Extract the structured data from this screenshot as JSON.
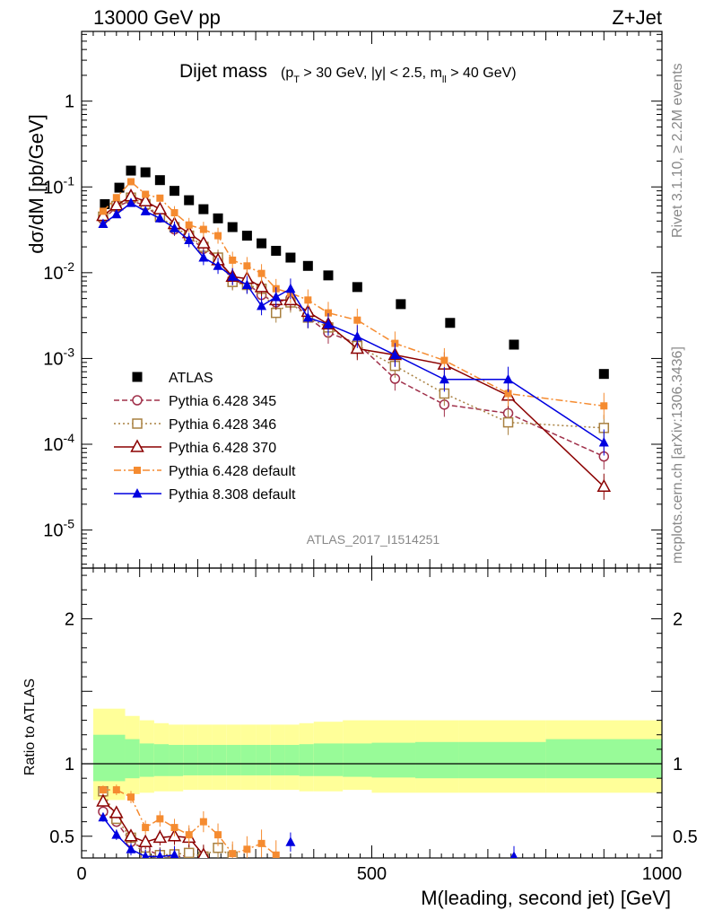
{
  "header": {
    "left": "13000 GeV pp",
    "right": "Z+Jet"
  },
  "side_labels": {
    "rivet": "Rivet 3.1.10, ≥ 2.2M events",
    "mcplots": "mcplots.cern.ch [arXiv:1306.3436]"
  },
  "plot_title": {
    "main": "Dijet mass",
    "cuts": "(p_T > 30 GeV, |y| < 2.5, m_ll > 40 GeV)"
  },
  "analysis_id": "ATLAS_2017_I1514251",
  "colors": {
    "ATLAS": "#000000",
    "p345": "#a0304a",
    "p346": "#a88040",
    "p370": "#8b0000",
    "p6def": "#f58b30",
    "p8def": "#0000e0",
    "band_inner": "#98fb98",
    "band_outer": "#ffff99"
  },
  "chart_data": [
    {
      "type": "scatter",
      "panel": "main",
      "title": "Dijet mass (p_T > 30 GeV, |y| < 2.5, m_ll > 40 GeV)",
      "xlabel": "M(leading, second jet) [GeV]",
      "ylabel": "dσ/dM [pb/GeV]",
      "xlim": [
        0,
        1000
      ],
      "ylim": [
        3.6e-06,
        6.5
      ],
      "yscale": "log",
      "y_ticks": [
        {
          "value": 1,
          "label": "1"
        },
        {
          "value": 0.1,
          "label": "10^-1"
        },
        {
          "value": 0.01,
          "label": "10^-2"
        },
        {
          "value": 0.001,
          "label": "10^-3"
        },
        {
          "value": 0.0001,
          "label": "10^-4"
        },
        {
          "value": 1e-05,
          "label": "10^-5"
        }
      ],
      "legend_position": "center-left",
      "series": [
        {
          "name": "ATLAS",
          "key": "ATLAS",
          "style": "data",
          "marker": "filled-square",
          "x": [
            40,
            65,
            85,
            110,
            135,
            160,
            185,
            210,
            235,
            260,
            285,
            310,
            335,
            360,
            390,
            425,
            475,
            550,
            635,
            745,
            900
          ],
          "y": [
            0.063,
            0.098,
            0.155,
            0.148,
            0.12,
            0.09,
            0.07,
            0.055,
            0.043,
            0.034,
            0.027,
            0.022,
            0.018,
            0.015,
            0.012,
            0.0093,
            0.0068,
            0.0043,
            0.0026,
            0.00145,
            0.00066
          ]
        },
        {
          "name": "Pythia 6.428 345",
          "key": "p345",
          "style": "line",
          "dash": "6,3",
          "marker": "open-circle",
          "x": [
            37,
            60,
            85,
            110,
            135,
            160,
            185,
            210,
            235,
            260,
            285,
            310,
            335,
            360,
            390,
            425,
            475,
            540,
            625,
            735,
            900
          ],
          "y": [
            0.042,
            0.058,
            0.07,
            0.06,
            0.044,
            0.032,
            0.026,
            0.019,
            0.0145,
            0.008,
            0.0075,
            0.0055,
            0.0045,
            0.005,
            0.003,
            0.002,
            0.0015,
            0.00058,
            0.00029,
            0.00023,
            7.2e-05
          ]
        },
        {
          "name": "Pythia 6.428 346",
          "key": "p346",
          "style": "line",
          "dash": "2,3",
          "marker": "open-square",
          "x": [
            37,
            60,
            85,
            110,
            135,
            160,
            185,
            210,
            235,
            260,
            285,
            310,
            335,
            360,
            390,
            425,
            475,
            540,
            625,
            735,
            900
          ],
          "y": [
            0.045,
            0.06,
            0.075,
            0.063,
            0.045,
            0.034,
            0.027,
            0.02,
            0.015,
            0.0078,
            0.0072,
            0.0065,
            0.0034,
            0.0045,
            0.003,
            0.0023,
            0.0014,
            0.00082,
            0.00039,
            0.00018,
            0.000155
          ]
        },
        {
          "name": "Pythia 6.428 370",
          "key": "p370",
          "style": "line",
          "dash": "",
          "marker": "open-triangle",
          "x": [
            37,
            60,
            85,
            110,
            135,
            160,
            185,
            210,
            235,
            260,
            285,
            310,
            335,
            360,
            390,
            425,
            475,
            540,
            625,
            735,
            900
          ],
          "y": [
            0.046,
            0.061,
            0.078,
            0.068,
            0.055,
            0.037,
            0.029,
            0.022,
            0.014,
            0.009,
            0.0085,
            0.0068,
            0.0048,
            0.0048,
            0.0035,
            0.0025,
            0.0013,
            0.0011,
            0.00085,
            0.00037,
            3.2e-05
          ]
        },
        {
          "name": "Pythia 6.428 default",
          "key": "p6def",
          "style": "line",
          "dash": "8,3,2,3",
          "marker": "small-square",
          "x": [
            37,
            60,
            85,
            110,
            135,
            160,
            185,
            210,
            235,
            260,
            285,
            310,
            335,
            360,
            390,
            425,
            475,
            540,
            625,
            735,
            900
          ],
          "y": [
            0.052,
            0.075,
            0.115,
            0.082,
            0.074,
            0.05,
            0.036,
            0.032,
            0.027,
            0.014,
            0.012,
            0.0098,
            0.0065,
            0.0058,
            0.0048,
            0.0034,
            0.0028,
            0.0015,
            0.00095,
            0.00039,
            0.00028
          ]
        },
        {
          "name": "Pythia 8.308 default",
          "key": "p8def",
          "style": "line",
          "dash": "",
          "marker": "filled-triangle",
          "x": [
            37,
            60,
            85,
            110,
            135,
            160,
            185,
            210,
            235,
            260,
            285,
            310,
            335,
            360,
            390,
            425,
            475,
            540,
            625,
            735,
            900
          ],
          "y": [
            0.037,
            0.048,
            0.065,
            0.052,
            0.043,
            0.033,
            0.024,
            0.015,
            0.012,
            0.009,
            0.0072,
            0.0041,
            0.0052,
            0.0065,
            0.003,
            0.0025,
            0.0018,
            0.0011,
            0.00057,
            0.00057,
            0.000105
          ]
        }
      ]
    },
    {
      "type": "scatter",
      "panel": "ratio",
      "xlabel": "M(leading, second jet) [GeV]",
      "ylabel": "Ratio to ATLAS",
      "xlim": [
        0,
        1000
      ],
      "ylim": [
        0.35,
        2.35
      ],
      "x_tick_labels": [
        "0",
        "500",
        "1000"
      ],
      "y_tick_labels": [
        "0.5",
        "1",
        "2"
      ],
      "bands": {
        "edges": [
          20,
          75,
          100,
          125,
          150,
          175,
          200,
          225,
          250,
          275,
          300,
          325,
          350,
          375,
          400,
          450,
          500,
          575,
          650,
          800,
          1000
        ],
        "inner_low": [
          0.88,
          0.9,
          0.91,
          0.915,
          0.915,
          0.92,
          0.92,
          0.92,
          0.92,
          0.92,
          0.92,
          0.92,
          0.92,
          0.915,
          0.915,
          0.91,
          0.905,
          0.9,
          0.9,
          0.9
        ],
        "inner_high": [
          1.2,
          1.17,
          1.14,
          1.135,
          1.13,
          1.13,
          1.13,
          1.13,
          1.13,
          1.13,
          1.13,
          1.13,
          1.13,
          1.135,
          1.14,
          1.14,
          1.145,
          1.15,
          1.15,
          1.17
        ],
        "outer_low": [
          0.75,
          0.79,
          0.8,
          0.81,
          0.81,
          0.82,
          0.82,
          0.82,
          0.82,
          0.82,
          0.82,
          0.82,
          0.82,
          0.81,
          0.81,
          0.82,
          0.8,
          0.8,
          0.8,
          0.8
        ],
        "outer_high": [
          1.38,
          1.33,
          1.3,
          1.28,
          1.27,
          1.27,
          1.27,
          1.27,
          1.27,
          1.27,
          1.27,
          1.27,
          1.27,
          1.28,
          1.29,
          1.3,
          1.3,
          1.3,
          1.3,
          1.3
        ]
      },
      "series": [
        {
          "name": "Pythia 6.428 345",
          "key": "p345",
          "dash": "6,3",
          "marker": "open-circle",
          "x": [
            37,
            60,
            85,
            110,
            135,
            160,
            185
          ],
          "y": [
            0.67,
            0.6,
            0.46,
            0.41,
            0.37,
            0.355,
            0.37
          ]
        },
        {
          "name": "Pythia 6.428 346",
          "key": "p346",
          "dash": "2,3",
          "marker": "open-square",
          "x": [
            37,
            60,
            85,
            110,
            135,
            160,
            185,
            210,
            235,
            260
          ],
          "y": [
            0.81,
            0.62,
            0.49,
            0.36,
            0.37,
            0.375,
            0.385,
            0.36,
            0.42,
            0.36
          ]
        },
        {
          "name": "Pythia 6.428 370",
          "key": "p370",
          "dash": "",
          "marker": "open-triangle",
          "x": [
            37,
            60,
            85,
            110,
            135,
            160,
            185,
            210
          ],
          "y": [
            0.74,
            0.66,
            0.5,
            0.46,
            0.49,
            0.5,
            0.49,
            0.37
          ]
        },
        {
          "name": "Pythia 6.428 default",
          "key": "p6def",
          "dash": "8,3,2,3",
          "marker": "small-square",
          "x": [
            37,
            60,
            85,
            110,
            135,
            160,
            185,
            210,
            235,
            260,
            285,
            310,
            335
          ],
          "y": [
            0.82,
            0.82,
            0.77,
            0.56,
            0.62,
            0.56,
            0.51,
            0.6,
            0.51,
            0.38,
            0.41,
            0.45,
            0.37
          ]
        },
        {
          "name": "Pythia 8.308 default",
          "key": "p8def",
          "dash": "",
          "marker": "filled-triangle",
          "x": [
            37,
            60,
            85,
            110,
            135,
            160,
            360,
            745
          ],
          "y": [
            0.63,
            0.51,
            0.41,
            0.36,
            0.36,
            0.37,
            0.46,
            0.36
          ]
        }
      ]
    }
  ]
}
